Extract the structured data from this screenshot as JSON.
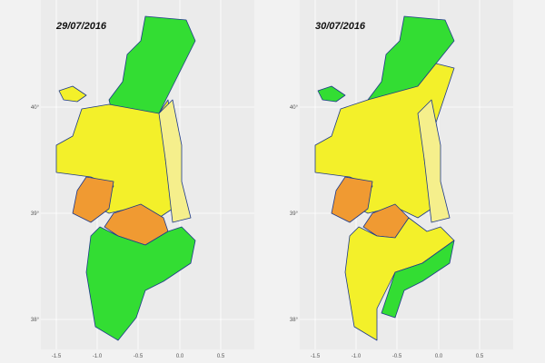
{
  "panels": [
    {
      "title": "29/07/2016",
      "x_labels": [
        "-1.5",
        "-1.0",
        "-0.5",
        "0.0",
        "0.5"
      ],
      "y_labels": [
        "40°",
        "39°",
        "38°"
      ]
    },
    {
      "title": "30/07/2016",
      "x_labels": [
        "-1.5",
        "-1.0",
        "-0.5",
        "0.0",
        "0.5"
      ],
      "y_labels": [
        "40°",
        "39°",
        "38°"
      ]
    }
  ]
}
